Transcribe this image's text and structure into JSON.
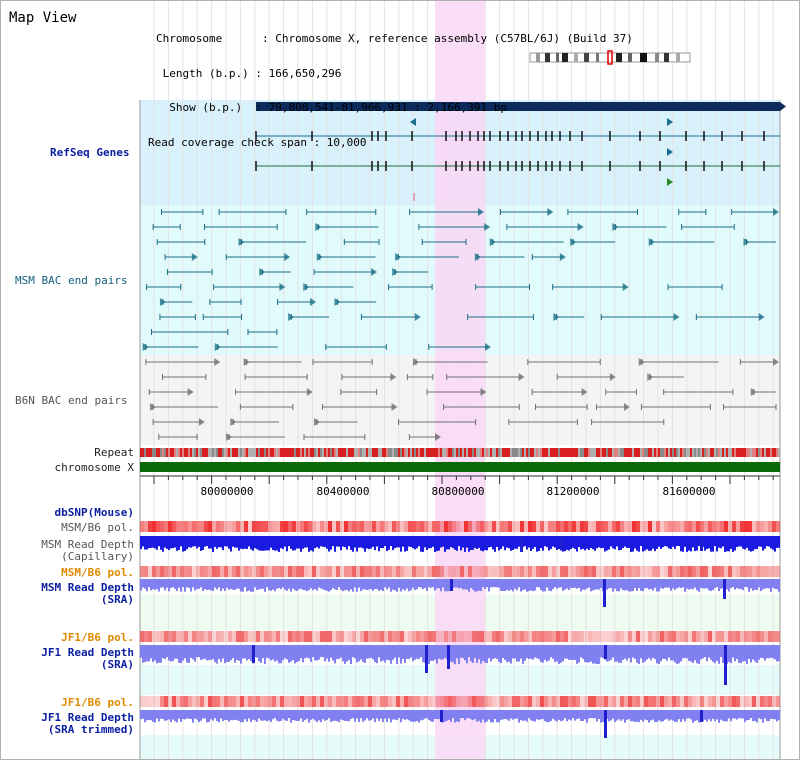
{
  "header": {
    "title": "Map View",
    "info_lines": [
      "Chromosome      : Chromosome X, reference assembly (C57BL/6J) (Build 37)",
      " Length (b.p.) : 166,650,296",
      "  Show (b.p.)  : 79,800,541-81,966,931 : 2,166,391 bp",
      "Read coverage check span : 10,000"
    ]
  },
  "tracks": {
    "refseq_genes": "RefSeq Genes",
    "msm_bac_end_pairs": "MSM BAC end pairs",
    "b6n_bac_end_pairs": "B6N BAC end pairs",
    "repeat": "Repeat",
    "chromosome": "chromosome X",
    "dbsnp": "dbSNP(Mouse)",
    "msm_b6_pol": "MSM/B6 pol.",
    "msm_read_depth_cap_1": "MSM Read Depth",
    "msm_read_depth_cap_2": "(Capillary)",
    "msm_b6_pol_2": "MSM/B6 pol.",
    "msm_read_depth_sra_1": "MSM Read Depth",
    "msm_read_depth_sra_2": "(SRA)",
    "jf1_b6_pol": "JF1/B6 pol.",
    "jf1_read_depth_sra_1": "JF1 Read Depth",
    "jf1_read_depth_sra_2": "(SRA)",
    "jf1_b6_pol_2": "JF1/B6 pol.",
    "jf1_read_depth_trim_1": "JF1 Read Depth",
    "jf1_read_depth_trim_2": "(SRA trimmed)"
  },
  "axis": {
    "ticks": [
      "80000000",
      "80400000",
      "80800000",
      "81200000",
      "81600000"
    ]
  },
  "colors": {
    "highlight": "#f9d7f5",
    "refseq_bg": "#d9f1fb",
    "msm_bac_bg": "#e1fafb",
    "b6n_bac_bg": "#f4f4f7",
    "chromosome_bar": "#0a6a0a",
    "gene_bar": "#0c2a5c",
    "depth_dark": "#1a1ae0",
    "depth_light": "#8080f0"
  }
}
